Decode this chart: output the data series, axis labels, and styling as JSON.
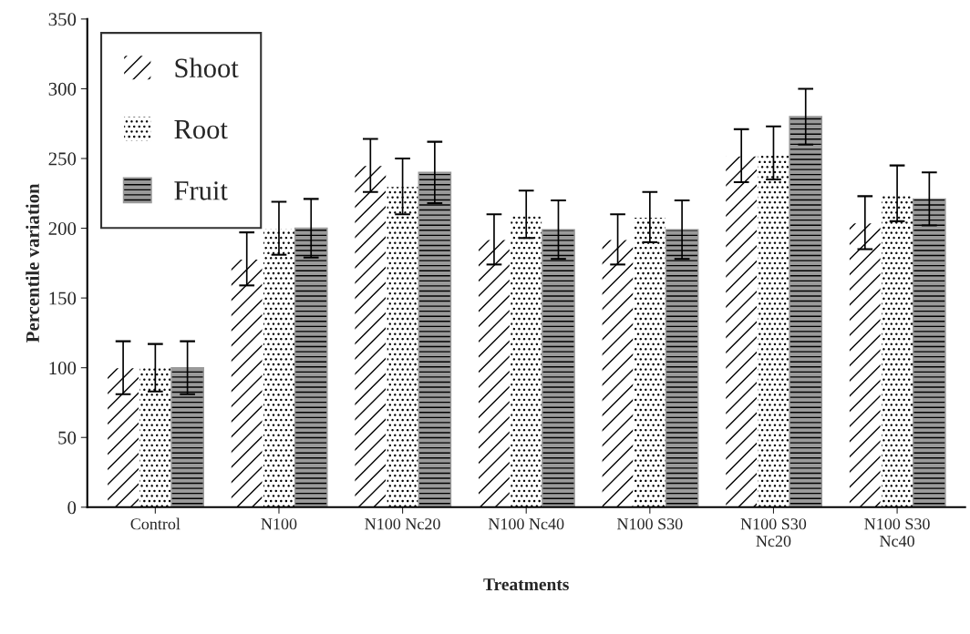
{
  "chart_data": {
    "type": "bar",
    "xlabel": "Treatments",
    "ylabel": "Percentile variation",
    "categories": [
      "Control",
      "N100",
      "N100 Nc20",
      "N100 Nc40",
      "N100 S30",
      "N100 S30\nNc20",
      "N100 S30\nNc40"
    ],
    "series": [
      {
        "name": "Shoot",
        "color": "#ffffff",
        "values": [
          100,
          178,
          245,
          192,
          192,
          252,
          204
        ],
        "errors": [
          19,
          19,
          19,
          18,
          18,
          19,
          19
        ]
      },
      {
        "name": "Root",
        "color": "#ffffff",
        "values": [
          100,
          200,
          230,
          210,
          208,
          254,
          225
        ],
        "errors": [
          17,
          19,
          20,
          17,
          18,
          19,
          20
        ]
      },
      {
        "name": "Fruit",
        "color": "#9a9a9a",
        "values": [
          100,
          200,
          240,
          199,
          199,
          280,
          221
        ],
        "errors": [
          19,
          21,
          22,
          21,
          21,
          20,
          19
        ]
      }
    ],
    "ylim": [
      0,
      350
    ],
    "yticks": [
      0,
      50,
      100,
      150,
      200,
      250,
      300,
      350
    ],
    "grid": false,
    "legend": "top left"
  }
}
